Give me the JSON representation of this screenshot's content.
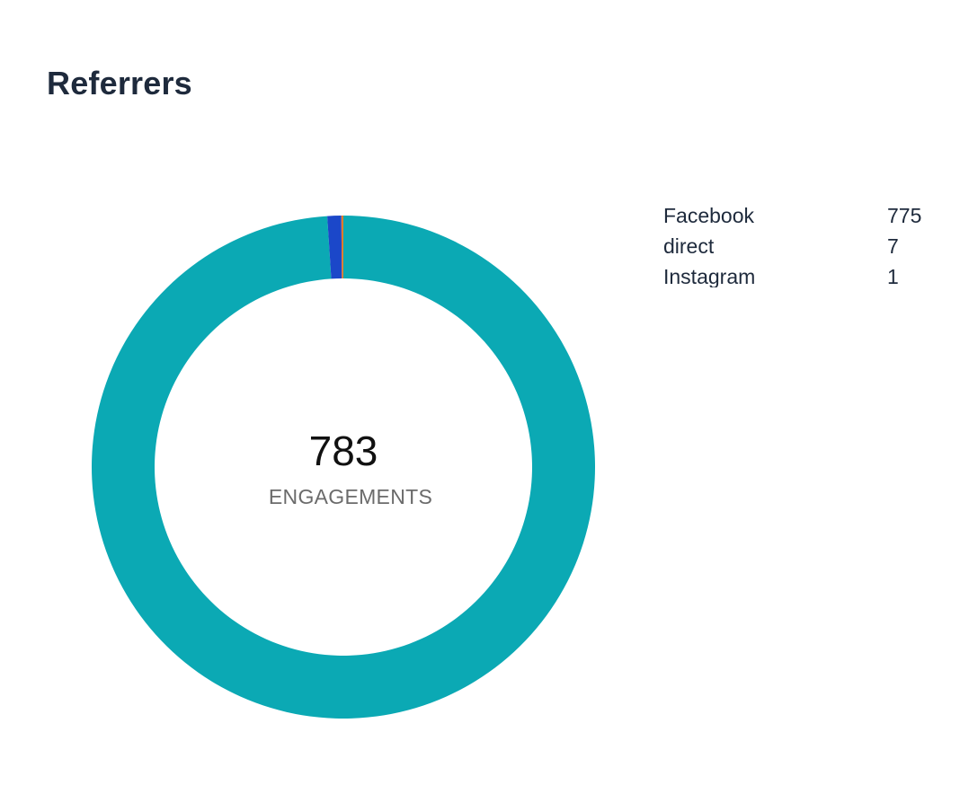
{
  "card": {
    "title": "Referrers"
  },
  "chart_data": {
    "type": "pie",
    "title": "Referrers",
    "center_value": "783",
    "center_label": "ENGAGEMENTS",
    "series": [
      {
        "name": "Facebook",
        "value": 775,
        "color": "#0ba9b4"
      },
      {
        "name": "direct",
        "value": 7,
        "color": "#1b47c9"
      },
      {
        "name": "Instagram",
        "value": 1,
        "color": "#e07b2a"
      }
    ],
    "legend_position": "right"
  }
}
